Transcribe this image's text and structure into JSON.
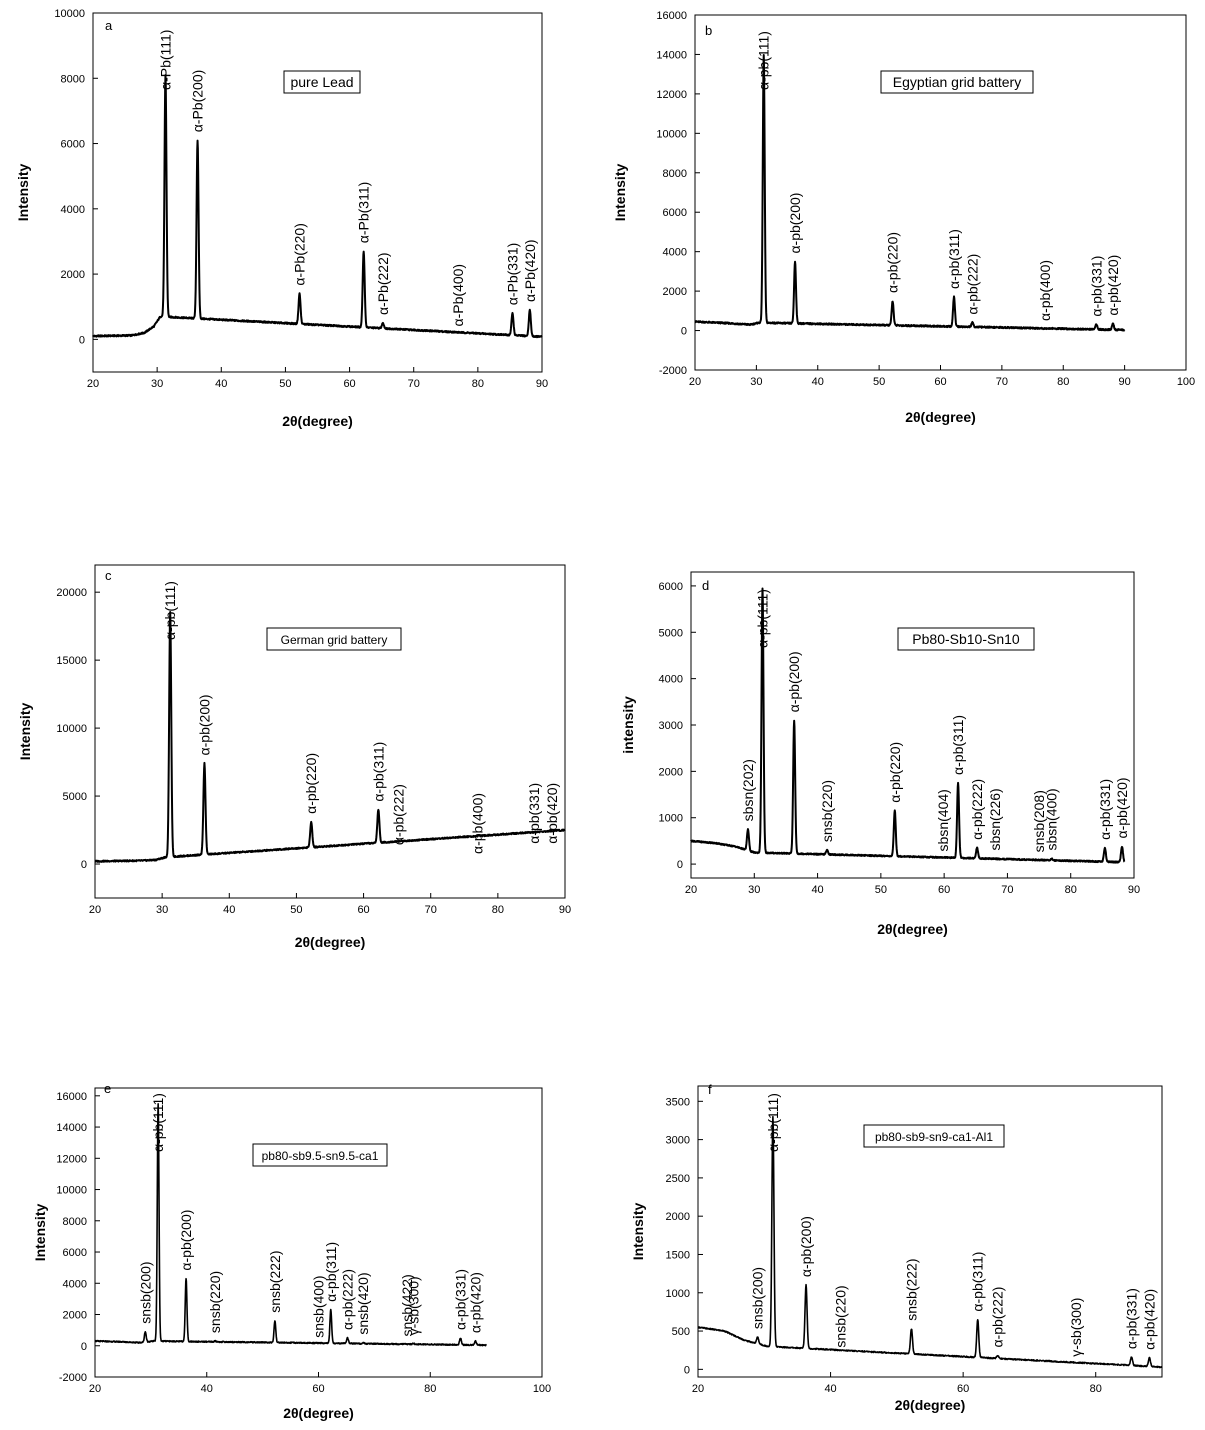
{
  "chart_data": [
    {
      "panel": "a",
      "type": "line",
      "legend_label": "pure Lead",
      "xlabel": "2θ(degree)",
      "ylabel": "Intensity",
      "xlim": [
        20,
        90
      ],
      "ylim": [
        -1000,
        10000
      ],
      "xticks": [
        20,
        30,
        40,
        50,
        60,
        70,
        80,
        90
      ],
      "yticks": [
        0,
        2000,
        4000,
        6000,
        8000,
        10000
      ],
      "baseline": [
        [
          20,
          100
        ],
        [
          26,
          120
        ],
        [
          28,
          200
        ],
        [
          29.5,
          400
        ],
        [
          30.5,
          700
        ]
      ],
      "end_x": 90,
      "end_y": 80,
      "peaks": [
        {
          "x": 31.3,
          "y": 8100,
          "label": "α-Pb(111)"
        },
        {
          "x": 36.3,
          "y": 6100,
          "label": "α-Pb(200)"
        },
        {
          "x": 52.2,
          "y": 1400,
          "label": "α-Pb(220)"
        },
        {
          "x": 62.2,
          "y": 2700,
          "label": "α-Pb(311)"
        },
        {
          "x": 65.2,
          "y": 500,
          "label": "α-Pb(222)"
        },
        {
          "x": 76.9,
          "y": 150,
          "label": "α-Pb(400)"
        },
        {
          "x": 85.4,
          "y": 800,
          "label": "α-Pb(331)"
        },
        {
          "x": 88.1,
          "y": 900,
          "label": "α-Pb(420)"
        }
      ]
    },
    {
      "panel": "b",
      "type": "line",
      "legend_label": "Egyptian grid battery",
      "xlabel": "2θ(degree)",
      "ylabel": "Intensity",
      "xlim": [
        20,
        100
      ],
      "ylim": [
        -2000,
        16000
      ],
      "xticks": [
        20,
        30,
        40,
        50,
        60,
        70,
        80,
        90,
        100
      ],
      "xtick_labels": [
        "20",
        "30",
        "40",
        "50",
        "60",
        "70",
        "80",
        "90",
        "100"
      ],
      "yticks": [
        -2000,
        0,
        2000,
        4000,
        6000,
        8000,
        10000,
        12000,
        14000,
        16000
      ],
      "baseline": [
        [
          20,
          450
        ],
        [
          25,
          380
        ],
        [
          29,
          300
        ],
        [
          30.5,
          400
        ]
      ],
      "end_x": 90,
      "end_y": 30,
      "peaks": [
        {
          "x": 31.2,
          "y": 14000,
          "label": "α-pb(111)"
        },
        {
          "x": 36.3,
          "y": 3500,
          "label": "α-pb(200)"
        },
        {
          "x": 52.2,
          "y": 1500,
          "label": "α-pb(220)"
        },
        {
          "x": 62.2,
          "y": 1700,
          "label": "α-pb(311)"
        },
        {
          "x": 65.2,
          "y": 400,
          "label": "α-pb(222)"
        },
        {
          "x": 77.0,
          "y": 80,
          "label": "α-pb(400)"
        },
        {
          "x": 85.4,
          "y": 300,
          "label": "α-pb(331)"
        },
        {
          "x": 88.1,
          "y": 350,
          "label": "α-pb(420)"
        }
      ]
    },
    {
      "panel": "c",
      "type": "line",
      "legend_label": "German grid battery",
      "xlabel": "2θ(degree)",
      "ylabel": "Intensity",
      "xlim": [
        20,
        90
      ],
      "ylim": [
        -2500,
        22000
      ],
      "xticks": [
        20,
        30,
        40,
        50,
        60,
        70,
        80,
        90
      ],
      "yticks": [
        0,
        5000,
        10000,
        15000,
        20000
      ],
      "baseline": [
        [
          20,
          200
        ],
        [
          27,
          250
        ],
        [
          29,
          300
        ],
        [
          30.5,
          500
        ]
      ],
      "end_x": 90,
      "end_y": 2500,
      "peaks": [
        {
          "x": 31.2,
          "y": 18500,
          "label": "α-pb(111)"
        },
        {
          "x": 36.3,
          "y": 7400,
          "label": "α-pb(200)"
        },
        {
          "x": 52.2,
          "y": 3100,
          "label": "α-pb(220)"
        },
        {
          "x": 62.2,
          "y": 4000,
          "label": "α-pb(311)"
        },
        {
          "x": 65.2,
          "y": 800,
          "label": "α-pb(222)"
        },
        {
          "x": 77.0,
          "y": 150,
          "label": "α-pb(400)"
        },
        {
          "x": 85.4,
          "y": 900,
          "label": "α-pb(331)"
        },
        {
          "x": 88.1,
          "y": 900,
          "label": "α-pb(420)"
        }
      ]
    },
    {
      "panel": "d",
      "type": "line",
      "legend_label": "Pb80-Sb10-Sn10",
      "xlabel": "2θ(degree)",
      "ylabel": "intensity",
      "xlim": [
        20,
        90
      ],
      "ylim": [
        -300,
        6300
      ],
      "xticks": [
        20,
        30,
        40,
        50,
        60,
        70,
        80,
        90
      ],
      "yticks": [
        0,
        1000,
        2000,
        3000,
        4000,
        5000,
        6000
      ],
      "baseline": [
        [
          20,
          500
        ],
        [
          24,
          450
        ],
        [
          27,
          380
        ],
        [
          30,
          250
        ]
      ],
      "end_x": 88.5,
      "end_y": 40,
      "peaks": [
        {
          "x": 29.0,
          "y": 750,
          "label": "sbsn(202)"
        },
        {
          "x": 31.3,
          "y": 5950,
          "label": "α-pb(111)"
        },
        {
          "x": 36.3,
          "y": 3100,
          "label": "α-pb(200)"
        },
        {
          "x": 41.5,
          "y": 300,
          "label": "snsb(220)"
        },
        {
          "x": 52.2,
          "y": 1150,
          "label": "α-pb(220)"
        },
        {
          "x": 59.8,
          "y": 100,
          "label": "sbsn(404)"
        },
        {
          "x": 62.2,
          "y": 1750,
          "label": "α-pb(311)"
        },
        {
          "x": 65.2,
          "y": 350,
          "label": "α-pb(222)"
        },
        {
          "x": 68.0,
          "y": 120,
          "label": "sbsn(226)"
        },
        {
          "x": 75.0,
          "y": 80,
          "label": "snsb(208)"
        },
        {
          "x": 77.0,
          "y": 120,
          "label": "sbsn(400)"
        },
        {
          "x": 85.4,
          "y": 350,
          "label": "α-pb(331)"
        },
        {
          "x": 88.1,
          "y": 380,
          "label": "α-pb(420)"
        }
      ]
    },
    {
      "panel": "e",
      "type": "line",
      "legend_label": "pb80-sb9.5-sn9.5-ca1",
      "xlabel": "2θ(degree)",
      "ylabel": "Intensity",
      "xlim": [
        20,
        100
      ],
      "ylim": [
        -2000,
        16500
      ],
      "xticks": [
        20,
        40,
        60,
        80,
        100
      ],
      "yticks": [
        -2000,
        0,
        2000,
        4000,
        6000,
        8000,
        10000,
        12000,
        14000,
        16000
      ],
      "baseline": [
        [
          20,
          300
        ],
        [
          25,
          250
        ],
        [
          28,
          200
        ],
        [
          30.5,
          300
        ]
      ],
      "end_x": 90,
      "end_y": 40,
      "peaks": [
        {
          "x": 29.0,
          "y": 900,
          "label": "snsb(200)"
        },
        {
          "x": 31.3,
          "y": 15500,
          "label": "α-pb(111)"
        },
        {
          "x": 36.3,
          "y": 4300,
          "label": "α-pb(200)"
        },
        {
          "x": 41.5,
          "y": 300,
          "label": "snsb(220)"
        },
        {
          "x": 52.2,
          "y": 1600,
          "label": "snsb(222)"
        },
        {
          "x": 60.0,
          "y": 0,
          "label": "snsb(400)"
        },
        {
          "x": 62.2,
          "y": 2300,
          "label": "α-pb(311)"
        },
        {
          "x": 65.2,
          "y": 500,
          "label": "α-pb(222)"
        },
        {
          "x": 68.0,
          "y": 200,
          "label": "snsb(420)"
        },
        {
          "x": 75.8,
          "y": 80,
          "label": "snsb(422)"
        },
        {
          "x": 77.0,
          "y": 150,
          "label": "γ-sb(300)"
        },
        {
          "x": 85.4,
          "y": 500,
          "label": "α-pb(331)"
        },
        {
          "x": 88.1,
          "y": 300,
          "label": "α-pb(420)"
        }
      ]
    },
    {
      "panel": "f",
      "type": "line",
      "legend_label": "pb80-sb9-sn9-ca1-Al1",
      "xlabel": "2θ(degree)",
      "ylabel": "Intensity",
      "xlim": [
        20,
        90
      ],
      "ylim": [
        -100,
        3700
      ],
      "xticks": [
        20,
        40,
        60,
        80
      ],
      "yticks": [
        0,
        500,
        1000,
        1500,
        2000,
        2500,
        3000,
        3500
      ],
      "baseline": [
        [
          20,
          550
        ],
        [
          24,
          500
        ],
        [
          27,
          380
        ],
        [
          30.5,
          300
        ]
      ],
      "end_x": 90,
      "end_y": 30,
      "peaks": [
        {
          "x": 29.0,
          "y": 420,
          "label": "snsb(200)"
        },
        {
          "x": 31.3,
          "y": 3300,
          "label": "α-pb(111)"
        },
        {
          "x": 36.3,
          "y": 1100,
          "label": "α-pb(200)"
        },
        {
          "x": 41.5,
          "y": 180,
          "label": "snsb(220)"
        },
        {
          "x": 52.2,
          "y": 530,
          "label": "snsb(222)"
        },
        {
          "x": 62.2,
          "y": 650,
          "label": "α-pb(311)"
        },
        {
          "x": 65.2,
          "y": 180,
          "label": "α-pb(222)"
        },
        {
          "x": 77.0,
          "y": 60,
          "label": "γ-sb(300)"
        },
        {
          "x": 85.4,
          "y": 160,
          "label": "α-pb(331)"
        },
        {
          "x": 88.1,
          "y": 150,
          "label": "α-pb(420)"
        }
      ]
    }
  ]
}
